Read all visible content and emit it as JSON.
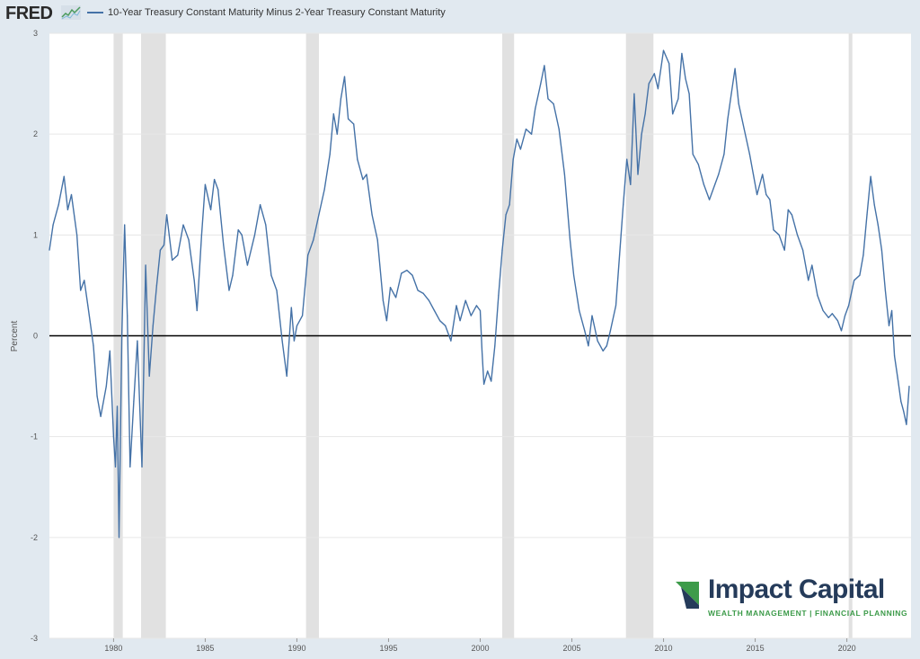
{
  "header": {
    "logo_text": "FRED",
    "logo_icon": "fred-sparkline-icon"
  },
  "branding": {
    "name": "Impact Capital",
    "tagline": "WEALTH MANAGEMENT | FINANCIAL PLANNING",
    "colors": {
      "navy": "#253b5a",
      "green": "#3d9b4a"
    }
  },
  "chart_data": {
    "type": "line",
    "series": [
      {
        "name": "10-Year Treasury Constant Maturity Minus 2-Year Treasury Constant Maturity",
        "color": "#4572a7",
        "points": [
          [
            1976.5,
            0.85
          ],
          [
            1976.7,
            1.1
          ],
          [
            1977.0,
            1.3
          ],
          [
            1977.3,
            1.58
          ],
          [
            1977.5,
            1.25
          ],
          [
            1977.7,
            1.4
          ],
          [
            1978.0,
            1.0
          ],
          [
            1978.2,
            0.45
          ],
          [
            1978.4,
            0.55
          ],
          [
            1978.6,
            0.3
          ],
          [
            1978.9,
            -0.1
          ],
          [
            1979.1,
            -0.6
          ],
          [
            1979.3,
            -0.8
          ],
          [
            1979.6,
            -0.5
          ],
          [
            1979.8,
            -0.15
          ],
          [
            1980.0,
            -1.0
          ],
          [
            1980.1,
            -1.3
          ],
          [
            1980.2,
            -0.7
          ],
          [
            1980.3,
            -2.0
          ],
          [
            1980.45,
            0.0
          ],
          [
            1980.6,
            1.1
          ],
          [
            1980.75,
            0.2
          ],
          [
            1980.9,
            -1.3
          ],
          [
            1981.1,
            -0.65
          ],
          [
            1981.3,
            -0.05
          ],
          [
            1981.55,
            -1.3
          ],
          [
            1981.75,
            0.7
          ],
          [
            1981.95,
            -0.4
          ],
          [
            1982.15,
            0.1
          ],
          [
            1982.35,
            0.5
          ],
          [
            1982.55,
            0.85
          ],
          [
            1982.75,
            0.9
          ],
          [
            1982.9,
            1.2
          ],
          [
            1983.2,
            0.75
          ],
          [
            1983.5,
            0.8
          ],
          [
            1983.8,
            1.1
          ],
          [
            1984.1,
            0.95
          ],
          [
            1984.4,
            0.55
          ],
          [
            1984.55,
            0.25
          ],
          [
            1984.8,
            1.0
          ],
          [
            1985.0,
            1.5
          ],
          [
            1985.3,
            1.25
          ],
          [
            1985.5,
            1.55
          ],
          [
            1985.7,
            1.45
          ],
          [
            1986.0,
            0.9
          ],
          [
            1986.3,
            0.45
          ],
          [
            1986.5,
            0.6
          ],
          [
            1986.8,
            1.05
          ],
          [
            1987.0,
            1.0
          ],
          [
            1987.3,
            0.7
          ],
          [
            1987.7,
            1.0
          ],
          [
            1988.0,
            1.3
          ],
          [
            1988.3,
            1.1
          ],
          [
            1988.6,
            0.6
          ],
          [
            1988.9,
            0.45
          ],
          [
            1989.2,
            -0.05
          ],
          [
            1989.45,
            -0.4
          ],
          [
            1989.7,
            0.28
          ],
          [
            1989.85,
            -0.05
          ],
          [
            1990.0,
            0.1
          ],
          [
            1990.3,
            0.2
          ],
          [
            1990.6,
            0.8
          ],
          [
            1990.9,
            0.95
          ],
          [
            1991.2,
            1.2
          ],
          [
            1991.5,
            1.45
          ],
          [
            1991.8,
            1.8
          ],
          [
            1992.0,
            2.2
          ],
          [
            1992.2,
            2.0
          ],
          [
            1992.4,
            2.35
          ],
          [
            1992.6,
            2.57
          ],
          [
            1992.8,
            2.15
          ],
          [
            1993.1,
            2.1
          ],
          [
            1993.3,
            1.75
          ],
          [
            1993.6,
            1.55
          ],
          [
            1993.8,
            1.6
          ],
          [
            1994.1,
            1.2
          ],
          [
            1994.4,
            0.95
          ],
          [
            1994.7,
            0.35
          ],
          [
            1994.9,
            0.15
          ],
          [
            1995.1,
            0.48
          ],
          [
            1995.4,
            0.38
          ],
          [
            1995.7,
            0.62
          ],
          [
            1996.0,
            0.65
          ],
          [
            1996.3,
            0.6
          ],
          [
            1996.6,
            0.45
          ],
          [
            1996.9,
            0.42
          ],
          [
            1997.2,
            0.35
          ],
          [
            1997.5,
            0.25
          ],
          [
            1997.8,
            0.15
          ],
          [
            1998.1,
            0.1
          ],
          [
            1998.4,
            -0.05
          ],
          [
            1998.7,
            0.3
          ],
          [
            1998.9,
            0.15
          ],
          [
            1999.2,
            0.35
          ],
          [
            1999.5,
            0.2
          ],
          [
            1999.8,
            0.3
          ],
          [
            2000.0,
            0.25
          ],
          [
            2000.1,
            -0.15
          ],
          [
            2000.2,
            -0.48
          ],
          [
            2000.4,
            -0.35
          ],
          [
            2000.6,
            -0.45
          ],
          [
            2000.8,
            -0.1
          ],
          [
            2001.0,
            0.4
          ],
          [
            2001.2,
            0.85
          ],
          [
            2001.4,
            1.2
          ],
          [
            2001.6,
            1.3
          ],
          [
            2001.8,
            1.75
          ],
          [
            2002.0,
            1.95
          ],
          [
            2002.2,
            1.85
          ],
          [
            2002.5,
            2.05
          ],
          [
            2002.8,
            2.0
          ],
          [
            2003.0,
            2.25
          ],
          [
            2003.3,
            2.5
          ],
          [
            2003.5,
            2.68
          ],
          [
            2003.7,
            2.35
          ],
          [
            2004.0,
            2.3
          ],
          [
            2004.3,
            2.05
          ],
          [
            2004.6,
            1.6
          ],
          [
            2004.9,
            0.95
          ],
          [
            2005.1,
            0.6
          ],
          [
            2005.4,
            0.25
          ],
          [
            2005.7,
            0.05
          ],
          [
            2005.9,
            -0.1
          ],
          [
            2006.1,
            0.2
          ],
          [
            2006.4,
            -0.05
          ],
          [
            2006.7,
            -0.15
          ],
          [
            2006.9,
            -0.1
          ],
          [
            2007.1,
            0.05
          ],
          [
            2007.4,
            0.3
          ],
          [
            2007.6,
            0.8
          ],
          [
            2007.8,
            1.3
          ],
          [
            2008.0,
            1.75
          ],
          [
            2008.2,
            1.5
          ],
          [
            2008.4,
            2.4
          ],
          [
            2008.6,
            1.6
          ],
          [
            2008.8,
            2.0
          ],
          [
            2009.0,
            2.2
          ],
          [
            2009.2,
            2.5
          ],
          [
            2009.5,
            2.6
          ],
          [
            2009.7,
            2.45
          ],
          [
            2010.0,
            2.83
          ],
          [
            2010.3,
            2.7
          ],
          [
            2010.5,
            2.2
          ],
          [
            2010.8,
            2.35
          ],
          [
            2011.0,
            2.8
          ],
          [
            2011.2,
            2.55
          ],
          [
            2011.4,
            2.4
          ],
          [
            2011.6,
            1.8
          ],
          [
            2011.9,
            1.7
          ],
          [
            2012.2,
            1.5
          ],
          [
            2012.5,
            1.35
          ],
          [
            2012.8,
            1.5
          ],
          [
            2013.0,
            1.6
          ],
          [
            2013.3,
            1.8
          ],
          [
            2013.5,
            2.15
          ],
          [
            2013.7,
            2.4
          ],
          [
            2013.9,
            2.65
          ],
          [
            2014.1,
            2.3
          ],
          [
            2014.4,
            2.05
          ],
          [
            2014.7,
            1.8
          ],
          [
            2014.9,
            1.6
          ],
          [
            2015.1,
            1.4
          ],
          [
            2015.4,
            1.6
          ],
          [
            2015.6,
            1.4
          ],
          [
            2015.8,
            1.35
          ],
          [
            2016.0,
            1.05
          ],
          [
            2016.3,
            1.0
          ],
          [
            2016.6,
            0.85
          ],
          [
            2016.8,
            1.25
          ],
          [
            2017.0,
            1.2
          ],
          [
            2017.3,
            1.0
          ],
          [
            2017.6,
            0.85
          ],
          [
            2017.9,
            0.55
          ],
          [
            2018.1,
            0.7
          ],
          [
            2018.4,
            0.4
          ],
          [
            2018.7,
            0.25
          ],
          [
            2019.0,
            0.18
          ],
          [
            2019.2,
            0.22
          ],
          [
            2019.5,
            0.15
          ],
          [
            2019.7,
            0.05
          ],
          [
            2019.9,
            0.2
          ],
          [
            2020.1,
            0.3
          ],
          [
            2020.4,
            0.55
          ],
          [
            2020.7,
            0.6
          ],
          [
            2020.9,
            0.8
          ],
          [
            2021.1,
            1.2
          ],
          [
            2021.3,
            1.58
          ],
          [
            2021.5,
            1.3
          ],
          [
            2021.7,
            1.1
          ],
          [
            2021.9,
            0.85
          ],
          [
            2022.1,
            0.45
          ],
          [
            2022.3,
            0.1
          ],
          [
            2022.45,
            0.25
          ],
          [
            2022.6,
            -0.2
          ],
          [
            2022.8,
            -0.45
          ],
          [
            2022.95,
            -0.65
          ],
          [
            2023.1,
            -0.75
          ],
          [
            2023.25,
            -0.88
          ],
          [
            2023.4,
            -0.5
          ]
        ]
      }
    ],
    "recessions": [
      [
        1980.0,
        1980.5
      ],
      [
        1981.5,
        1982.85
      ],
      [
        1990.5,
        1991.2
      ],
      [
        2001.2,
        2001.85
      ],
      [
        2007.95,
        2009.45
      ],
      [
        2020.1,
        2020.3
      ]
    ],
    "xlim": [
      1976.5,
      2023.5
    ],
    "ylim": [
      -3,
      3
    ],
    "xticks": [
      1980,
      1985,
      1990,
      1995,
      2000,
      2005,
      2010,
      2015,
      2020
    ],
    "yticks": [
      -3,
      -2,
      -1,
      0,
      1,
      2,
      3
    ],
    "ylabel": "Percent",
    "grid": true
  }
}
